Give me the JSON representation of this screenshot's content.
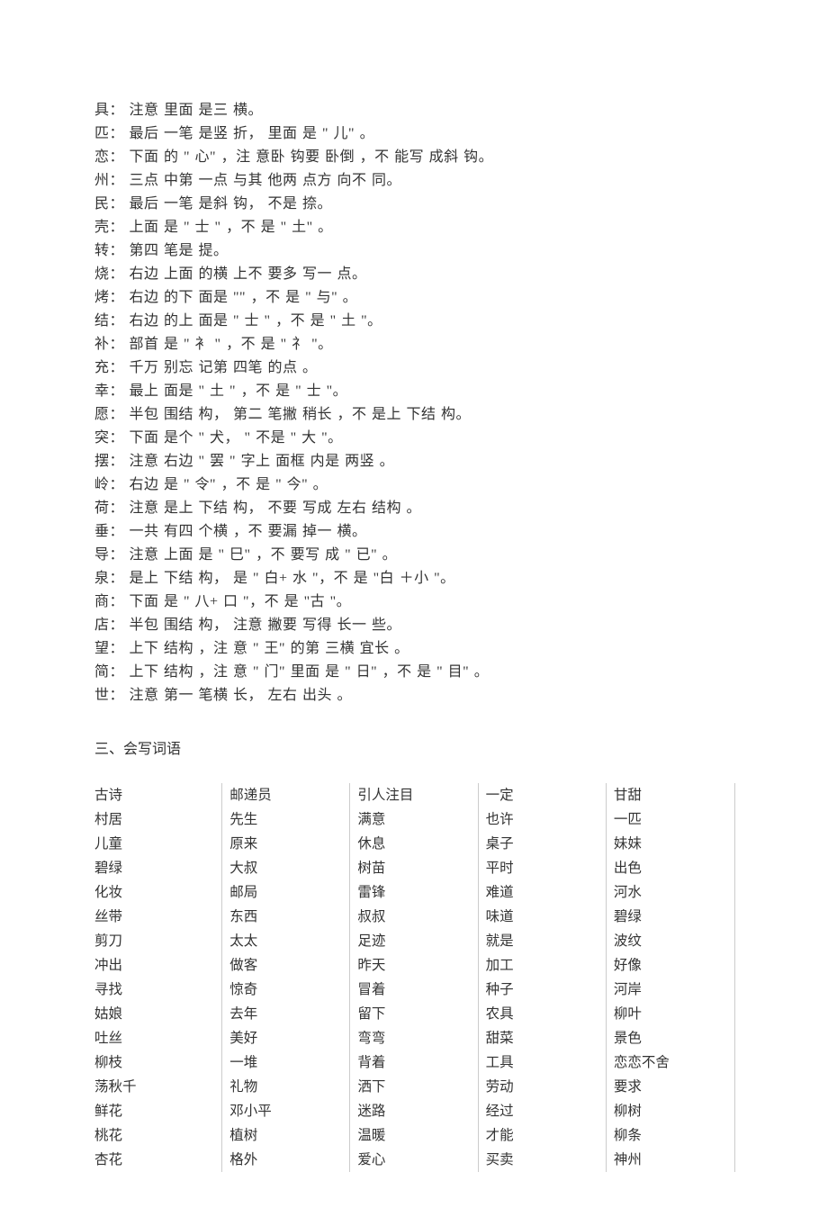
{
  "writing_notes": [
    "具： 注意 里面 是三 横。",
    "匹： 最后 一笔 是竖 折， 里面 是 \" 儿\" 。",
    "恋： 下面 的 \" 心\" ，注 意卧 钩要 卧倒 ，不 能写 成斜 钩。",
    "州： 三点 中第 一点 与其 他两 点方 向不 同。",
    "民： 最后 一笔 是斜 钩， 不是 捺。",
    "壳： 上面 是 \" 士 \" ，不 是 \" 土\" 。",
    "转： 第四 笔是 提。",
    "烧： 右边 上面 的横 上不 要多 写一 点。",
    "烤： 右边 的下 面是 \"\" ，不 是 \" 与\" 。",
    "结： 右边 的上 面是 \" 士 \" ，不 是 \" 土 \"。",
    "补： 部首 是 \" 衤 \" ，不 是 \" 礻 \"。",
    "充： 千万 别忘 记第 四笔 的点 。",
    "幸： 最上 面是 \" 土 \" ，不 是 \" 士 \"。",
    "愿： 半包 围结 构， 第二 笔撇 稍长 ，不 是上 下结 构。",
    "突： 下面 是个 \" 犬， \" 不是 \" 大 \"。",
    "摆： 注意 右边 \" 罢 \" 字上 面框 内是 两竖 。",
    "岭： 右边 是 \" 令\" ，不 是 \" 今\" 。",
    "荷： 注意 是上 下结 构， 不要 写成 左右 结构 。",
    "垂： 一共 有四 个横 ，不 要漏 掉一 横。",
    "导： 注意 上面 是 \" 巳\" ，不 要写 成 \" 已\" 。",
    "泉： 是上 下结 构， 是 \" 白+ 水 \"，不 是 \"白 ＋小 \"。",
    "商： 下面 是 \" 八+ 口 \"，不 是 \"古 \"。",
    "店： 半包 围结 构， 注意 撇要 写得 长一 些。",
    "望： 上下 结构 ，注 意 \" 王\" 的第 三横 宜长 。",
    "简： 上下 结构 ，注 意 \" 门\" 里面 是 \" 日\" ，不 是 \" 目\" 。",
    "世： 注意 第一 笔横 长， 左右 出头 。"
  ],
  "section_title": "三、会写词语",
  "word_columns": [
    [
      "古诗",
      "村居",
      "儿童",
      "碧绿",
      "化妆",
      "丝带",
      "剪刀",
      "冲出",
      "寻找",
      "姑娘",
      "吐丝",
      "柳枝",
      "荡秋千",
      "鲜花",
      "桃花",
      "杏花"
    ],
    [
      "邮递员",
      "先生",
      "原来",
      "大叔",
      "邮局",
      "东西",
      "太太",
      "做客",
      "惊奇",
      "去年",
      "美好",
      "一堆",
      "礼物",
      "邓小平",
      "植树",
      "格外"
    ],
    [
      "引人注目",
      "满意",
      "休息",
      "树苗",
      "雷锋",
      "叔叔",
      "足迹",
      "昨天",
      "冒着",
      "留下",
      "弯弯",
      "背着",
      "洒下",
      "迷路",
      "温暖",
      "爱心"
    ],
    [
      "一定",
      "也许",
      "桌子",
      "平时",
      "难道",
      "味道",
      "就是",
      "加工",
      "种子",
      "农具",
      "甜菜",
      "工具",
      "劳动",
      "经过",
      "才能",
      "买卖"
    ],
    [
      "甘甜",
      "一匹",
      "妹妹",
      "出色",
      "河水",
      "碧绿",
      "波纹",
      "好像",
      "河岸",
      "柳叶",
      "景色",
      "恋恋不舍",
      "要求",
      "柳树",
      "柳条",
      "神州"
    ]
  ],
  "colors": {
    "text": "#333333",
    "background": "#ffffff",
    "border": "#cccccc"
  },
  "typography": {
    "font_family": "SimSun",
    "note_fontsize": 16,
    "word_fontsize": 15.5,
    "note_lineheight": 26,
    "word_lineheight": 27
  }
}
